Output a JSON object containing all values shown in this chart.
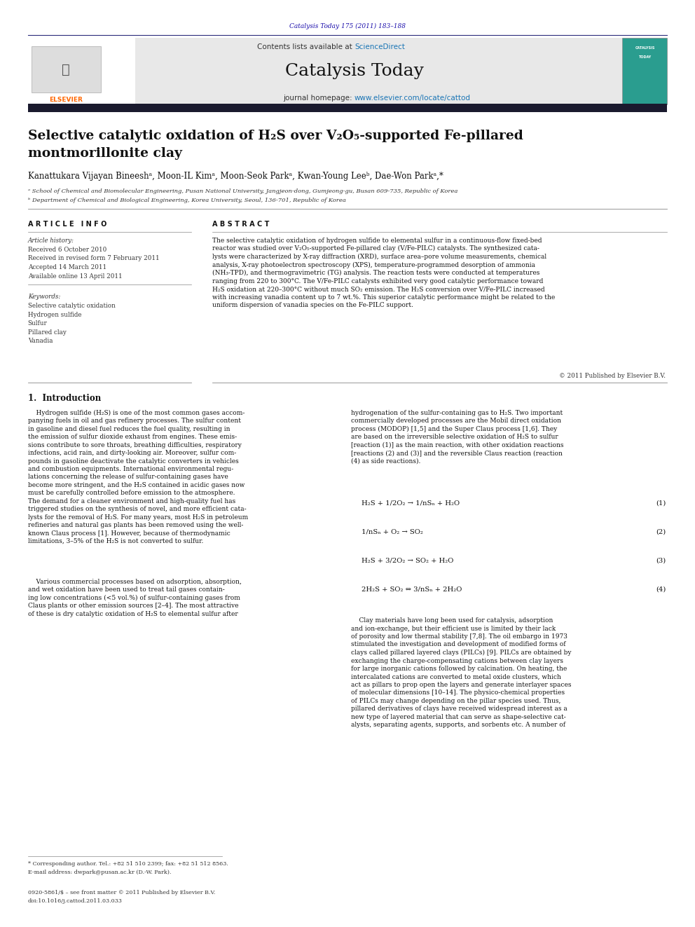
{
  "page_width": 9.92,
  "page_height": 13.23,
  "background_color": "#ffffff",
  "top_journal_ref": "Catalysis Today 175 (2011) 183–188",
  "top_journal_ref_color": "#1a0dab",
  "header_bg": "#e8e8e8",
  "header_contents_text": "Contents lists available at ",
  "header_sciencedirect": "ScienceDirect",
  "header_sciencedirect_color": "#1a75b5",
  "journal_title": "Catalysis Today",
  "journal_homepage_text": "journal homepage: ",
  "journal_homepage_url": "www.elsevier.com/locate/cattod",
  "journal_homepage_url_color": "#1a75b5",
  "thick_bar_color": "#1a1a2e",
  "article_title_line1": "Selective catalytic oxidation of H₂S over V₂O₅-supported Fe-pillared",
  "article_title_line2": "montmorillonite clay",
  "authors": "Kanattukara Vijayan Bineeshᵃ, Moon-IL Kimᵃ, Moon-Seok Parkᵃ, Kwan-Young Leeᵇ, Dae-Won Parkᵃ,*",
  "affil_a": "ᵃ School of Chemical and Biomolecular Engineering, Pusan National University, Jangjeon-dong, Gumjeong-gu, Busan 609-735, Republic of Korea",
  "affil_b": "ᵇ Department of Chemical and Biological Engineering, Korea University, Seoul, 136-701, Republic of Korea",
  "article_info_header": "A R T I C L E   I N F O",
  "article_history_header": "Article history:",
  "article_history_lines": [
    "Received 6 October 2010",
    "Received in revised form 7 February 2011",
    "Accepted 14 March 2011",
    "Available online 13 April 2011"
  ],
  "keywords_header": "Keywords:",
  "keywords_list": [
    "Selective catalytic oxidation",
    "Hydrogen sulfide",
    "Sulfur",
    "Pillared clay",
    "Vanadia"
  ],
  "abstract_header": "A B S T R A C T",
  "abstract_text": "The selective catalytic oxidation of hydrogen sulfide to elemental sulfur in a continuous-flow fixed-bed\nreactor was studied over V₂O₅-supported Fe-pillared clay (V/Fe-PILC) catalysts. The synthesized cata-\nlysts were characterized by X-ray diffraction (XRD), surface area–pore volume measurements, chemical\nanalysis, X-ray photoelectron spectroscopy (XPS), temperature-programmed desorption of ammonia\n(NH₃-TPD), and thermogravimetric (TG) analysis. The reaction tests were conducted at temperatures\nranging from 220 to 300°C. The V/Fe-PILC catalysts exhibited very good catalytic performance toward\nH₂S oxidation at 220–300°C without much SO₂ emission. The H₂S conversion over V/Fe-PILC increased\nwith increasing vanadia content up to 7 wt.%. This superior catalytic performance might be related to the\nuniform dispersion of vanadia species on the Fe-PILC support.",
  "copyright_text": "© 2011 Published by Elsevier B.V.",
  "section1_header": "1.  Introduction",
  "intro_col1_para1": "    Hydrogen sulfide (H₂S) is one of the most common gases accom-\npanying fuels in oil and gas refinery processes. The sulfur content\nin gasoline and diesel fuel reduces the fuel quality, resulting in\nthe emission of sulfur dioxide exhaust from engines. These emis-\nsions contribute to sore throats, breathing difficulties, respiratory\ninfections, acid rain, and dirty-looking air. Moreover, sulfur com-\npounds in gasoline deactivate the catalytic converters in vehicles\nand combustion equipments. International environmental regu-\nlations concerning the release of sulfur-containing gases have\nbecome more stringent, and the H₂S contained in acidic gases now\nmust be carefully controlled before emission to the atmosphere.\nThe demand for a cleaner environment and high-quality fuel has\ntriggered studies on the synthesis of novel, and more efficient cata-\nlysts for the removal of H₂S. For many years, most H₂S in petroleum\nrefineries and natural gas plants has been removed using the well-\nknown Claus process [1]. However, because of thermodynamic\nlimitations, 3–5% of the H₂S is not converted to sulfur.",
  "intro_col1_para2": "    Various commercial processes based on adsorption, absorption,\nand wet oxidation have been used to treat tail gases contain-\ning low concentrations (<5 vol.%) of sulfur-containing gases from\nClaus plants or other emission sources [2–4]. The most attractive\nof these is dry catalytic oxidation of H₂S to elemental sulfur after",
  "intro_col2_para1": "hydrogenation of the sulfur-containing gas to H₂S. Two important\ncommercially developed processes are the Mobil direct oxidation\nprocess (MODOP) [1,5] and the Super Claus process [1,6]. They\nare based on the irreversible selective oxidation of H₂S to sulfur\n[reaction (1)] as the main reaction, with other oxidation reactions\n[reactions (2) and (3)] and the reversible Claus reaction (reaction\n(4) as side reactions).",
  "eq1": "H₂S + 1/2O₂ → 1/nSₙ + H₂O",
  "eq1_num": "(1)",
  "eq2": "1/nSₙ + O₂ → SO₂",
  "eq2_num": "(2)",
  "eq3": "H₂S + 3/2O₂ → SO₂ + H₂O",
  "eq3_num": "(3)",
  "eq4": "2H₂S + SO₂ ⇔ 3/nSₙ + 2H₂O",
  "eq4_num": "(4)",
  "intro_col2_para2": "    Clay materials have long been used for catalysis, adsorption\nand ion-exchange, but their efficient use is limited by their lack\nof porosity and low thermal stability [7,8]. The oil embargo in 1973\nstimulated the investigation and development of modified forms of\nclays called pillared layered clays (PILCs) [9]. PILCs are obtained by\nexchanging the charge-compensating cations between clay layers\nfor large inorganic cations followed by calcination. On heating, the\nintercalated cations are converted to metal oxide clusters, which\nact as pillars to prop open the layers and generate interlayer spaces\nof molecular dimensions [10–14]. The physico-chemical properties\nof PILCs may change depending on the pillar species used. Thus,\npillared derivatives of clays have received widespread interest as a\nnew type of layered material that can serve as shape-selective cat-\nalysts, separating agents, supports, and sorbents etc. A number of",
  "footer_star": "* Corresponding author. Tel.: +82 51 510 2399; fax: +82 51 512 8563.",
  "footer_email": "E-mail address: dwpark@pusan.ac.kr (D.-W. Park).",
  "footer_issn": "0920-5861/$ – see front matter © 2011 Published by Elsevier B.V.",
  "footer_doi": "doi:10.1016/j.cattod.2011.03.033"
}
